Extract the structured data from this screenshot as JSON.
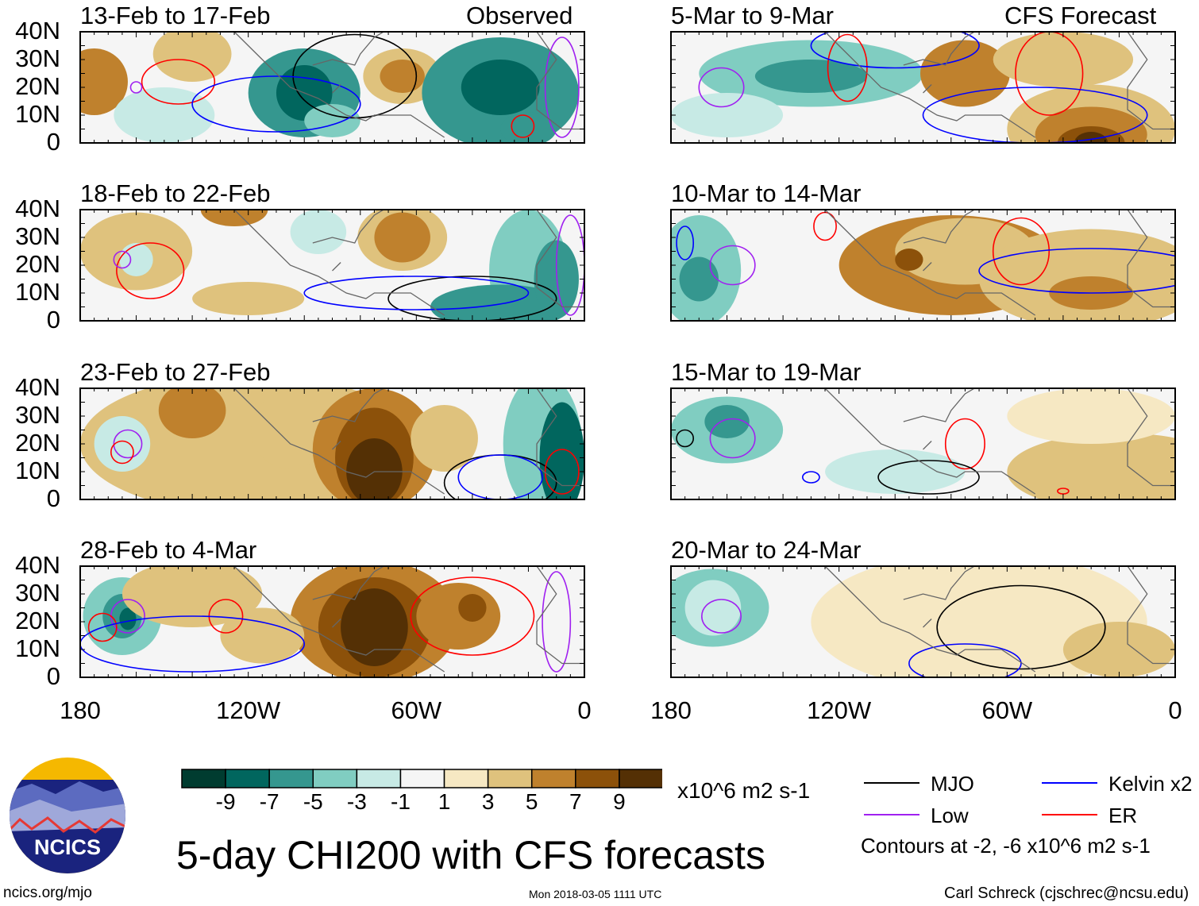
{
  "chart_data": {
    "type": "heatmap",
    "title": "5-day CHI200 with CFS forecasts",
    "units": "x10^6 m2 s-1",
    "lon_range": [
      -180,
      0
    ],
    "lat_range": [
      0,
      40
    ],
    "x_ticks": [
      {
        "v": -180,
        "label": "180"
      },
      {
        "v": -120,
        "label": "120W"
      },
      {
        "v": -60,
        "label": "60W"
      },
      {
        "v": 0,
        "label": "0"
      }
    ],
    "y_ticks": [
      {
        "v": 40,
        "label": "40N"
      },
      {
        "v": 30,
        "label": "30N"
      },
      {
        "v": 20,
        "label": "20N"
      },
      {
        "v": 10,
        "label": "10N"
      },
      {
        "v": 0,
        "label": "0"
      }
    ],
    "column_labels": {
      "observed": "Observed",
      "forecast": "CFS Forecast"
    },
    "colorbar": {
      "levels": [
        "-9",
        "-7",
        "-5",
        "-3",
        "-1",
        "1",
        "3",
        "5",
        "7",
        "9"
      ],
      "colors": [
        "#003c30",
        "#01665e",
        "#35978f",
        "#80cdc1",
        "#c7eae5",
        "#f5f5f5",
        "#f6e8c3",
        "#dfc27d",
        "#bf812d",
        "#8c510a",
        "#543005"
      ]
    },
    "legend": [
      {
        "name": "MJO",
        "color": "#000000"
      },
      {
        "name": "Kelvin x2",
        "color": "#0000ff"
      },
      {
        "name": "Low",
        "color": "#a020f0"
      },
      {
        "name": "ER",
        "color": "#ff0000"
      }
    ],
    "contour_note": "Contours at -2, -6 x10^6 m2 s-1",
    "panels": [
      {
        "title": "13-Feb to 17-Feb",
        "col": 0,
        "row": 0,
        "blobs": [
          [
            -175,
            22,
            12,
            12,
            5
          ],
          [
            -140,
            32,
            14,
            10,
            3
          ],
          [
            -150,
            10,
            18,
            10,
            -1
          ],
          [
            -100,
            18,
            20,
            16,
            -5
          ],
          [
            -100,
            18,
            10,
            10,
            -7
          ],
          [
            -65,
            24,
            14,
            10,
            3
          ],
          [
            -65,
            24,
            8,
            6,
            5
          ],
          [
            -30,
            18,
            28,
            20,
            -5
          ],
          [
            -30,
            20,
            14,
            10,
            -7
          ],
          [
            -20,
            5,
            10,
            6,
            -5
          ],
          [
            -90,
            8,
            10,
            6,
            -3
          ]
        ],
        "contours": [
          [
            -145,
            22,
            13,
            8,
            "ER"
          ],
          [
            -160,
            20,
            2,
            2,
            "Low"
          ],
          [
            -82,
            24,
            22,
            15,
            "MJO"
          ],
          [
            -22,
            6,
            4,
            4,
            "ER"
          ],
          [
            -110,
            14,
            30,
            10,
            "Kelvin"
          ],
          [
            -8,
            20,
            6,
            18,
            "Low"
          ]
        ]
      },
      {
        "title": "18-Feb to 22-Feb",
        "col": 0,
        "row": 1,
        "blobs": [
          [
            -160,
            25,
            20,
            14,
            3
          ],
          [
            -160,
            22,
            6,
            6,
            -1
          ],
          [
            -125,
            40,
            12,
            6,
            5
          ],
          [
            -95,
            32,
            10,
            8,
            -1
          ],
          [
            -65,
            30,
            16,
            12,
            3
          ],
          [
            -65,
            30,
            10,
            9,
            5
          ],
          [
            -120,
            8,
            20,
            6,
            3
          ],
          [
            -20,
            18,
            14,
            22,
            -3
          ],
          [
            -30,
            5,
            25,
            8,
            -5
          ],
          [
            -10,
            15,
            8,
            14,
            -5
          ]
        ],
        "contours": [
          [
            -155,
            18,
            12,
            10,
            "ER"
          ],
          [
            -165,
            22,
            3,
            3,
            "Low"
          ],
          [
            -40,
            8,
            30,
            8,
            "MJO"
          ],
          [
            -60,
            10,
            40,
            6,
            "Kelvin"
          ],
          [
            -5,
            20,
            5,
            18,
            "Low"
          ]
        ]
      },
      {
        "title": "23-Feb to 27-Feb",
        "col": 0,
        "row": 2,
        "blobs": [
          [
            -120,
            20,
            60,
            25,
            3
          ],
          [
            -140,
            32,
            12,
            10,
            5
          ],
          [
            -105,
            25,
            14,
            14,
            3
          ],
          [
            -75,
            18,
            22,
            22,
            5
          ],
          [
            -75,
            15,
            14,
            18,
            7
          ],
          [
            -75,
            10,
            10,
            12,
            9
          ],
          [
            -50,
            22,
            12,
            12,
            3
          ],
          [
            -15,
            20,
            14,
            25,
            -3
          ],
          [
            -8,
            15,
            8,
            20,
            -7
          ],
          [
            -165,
            20,
            10,
            10,
            -1
          ]
        ],
        "contours": [
          [
            -163,
            20,
            5,
            5,
            "Low"
          ],
          [
            -165,
            17,
            4,
            4,
            "ER"
          ],
          [
            -30,
            6,
            20,
            10,
            "MJO"
          ],
          [
            -30,
            8,
            15,
            8,
            "Kelvin"
          ],
          [
            -8,
            10,
            6,
            8,
            "ER"
          ]
        ]
      },
      {
        "title": "28-Feb to 4-Mar",
        "col": 0,
        "row": 3,
        "blobs": [
          [
            -165,
            22,
            14,
            14,
            -3
          ],
          [
            -165,
            22,
            7,
            8,
            -5
          ],
          [
            -163,
            21,
            3,
            4,
            -7
          ],
          [
            -140,
            30,
            25,
            12,
            3
          ],
          [
            -75,
            20,
            30,
            22,
            5
          ],
          [
            -75,
            18,
            20,
            18,
            7
          ],
          [
            -75,
            18,
            12,
            14,
            9
          ],
          [
            -45,
            22,
            15,
            12,
            5
          ],
          [
            -40,
            25,
            5,
            5,
            7
          ],
          [
            -115,
            15,
            15,
            10,
            3
          ]
        ],
        "contours": [
          [
            -163,
            22,
            6,
            6,
            "Low"
          ],
          [
            -172,
            18,
            5,
            5,
            "ER"
          ],
          [
            -128,
            22,
            6,
            6,
            "ER"
          ],
          [
            -40,
            22,
            22,
            14,
            "ER"
          ],
          [
            -140,
            12,
            40,
            10,
            "Kelvin"
          ],
          [
            -10,
            20,
            5,
            18,
            "Low"
          ]
        ]
      },
      {
        "title": "5-Mar to 9-Mar",
        "col": 1,
        "row": 0,
        "blobs": [
          [
            -130,
            25,
            40,
            12,
            -3
          ],
          [
            -130,
            24,
            20,
            6,
            -5
          ],
          [
            -160,
            10,
            20,
            8,
            -1
          ],
          [
            -75,
            25,
            16,
            12,
            5
          ],
          [
            -40,
            30,
            25,
            10,
            3
          ],
          [
            -30,
            5,
            30,
            16,
            3
          ],
          [
            -30,
            3,
            20,
            10,
            5
          ],
          [
            -30,
            0,
            12,
            6,
            7
          ],
          [
            -30,
            0,
            6,
            4,
            9
          ]
        ],
        "contours": [
          [
            -162,
            20,
            8,
            7,
            "Low"
          ],
          [
            -117,
            27,
            7,
            12,
            "ER"
          ],
          [
            -45,
            25,
            12,
            15,
            "ER"
          ],
          [
            -100,
            35,
            30,
            8,
            "Kelvin"
          ],
          [
            -50,
            10,
            40,
            10,
            "Kelvin"
          ]
        ]
      },
      {
        "title": "10-Mar to 14-Mar",
        "col": 1,
        "row": 1,
        "blobs": [
          [
            -170,
            18,
            15,
            20,
            -3
          ],
          [
            -170,
            15,
            7,
            8,
            -5
          ],
          [
            -80,
            20,
            40,
            18,
            5
          ],
          [
            -75,
            25,
            25,
            12,
            3
          ],
          [
            -30,
            15,
            40,
            18,
            3
          ],
          [
            -30,
            10,
            15,
            6,
            5
          ],
          [
            -95,
            22,
            5,
            4,
            7
          ]
        ],
        "contours": [
          [
            -158,
            20,
            8,
            7,
            "Low"
          ],
          [
            -175,
            28,
            3,
            6,
            "Kelvin"
          ],
          [
            -55,
            25,
            10,
            12,
            "ER"
          ],
          [
            -125,
            34,
            4,
            5,
            "ER"
          ],
          [
            -30,
            18,
            40,
            8,
            "Kelvin"
          ]
        ]
      },
      {
        "title": "15-Mar to 19-Mar",
        "col": 1,
        "row": 2,
        "blobs": [
          [
            -160,
            25,
            20,
            12,
            -3
          ],
          [
            -160,
            28,
            8,
            6,
            -5
          ],
          [
            -100,
            10,
            25,
            8,
            -1
          ],
          [
            -20,
            10,
            40,
            14,
            3
          ],
          [
            -30,
            30,
            30,
            10,
            1
          ]
        ],
        "contours": [
          [
            -158,
            22,
            8,
            7,
            "Low"
          ],
          [
            -75,
            20,
            7,
            9,
            "ER"
          ],
          [
            -88,
            8,
            18,
            6,
            "MJO"
          ],
          [
            -130,
            8,
            3,
            2,
            "Kelvin"
          ],
          [
            -175,
            22,
            3,
            3,
            "MJO"
          ],
          [
            -40,
            3,
            2,
            1,
            "ER"
          ]
        ]
      },
      {
        "title": "20-Mar to 24-Mar",
        "col": 1,
        "row": 3,
        "blobs": [
          [
            -165,
            25,
            20,
            14,
            -3
          ],
          [
            -165,
            25,
            10,
            10,
            -1
          ],
          [
            -40,
            25,
            25,
            12,
            -1
          ],
          [
            -70,
            20,
            60,
            25,
            1
          ],
          [
            -20,
            10,
            20,
            10,
            3
          ]
        ],
        "contours": [
          [
            -162,
            22,
            7,
            6,
            "Low"
          ],
          [
            -55,
            18,
            30,
            15,
            "MJO"
          ],
          [
            -75,
            5,
            20,
            7,
            "Kelvin"
          ]
        ]
      }
    ]
  },
  "footer": {
    "logo_text": "NCICS",
    "url": "ncics.org/mjo",
    "timestamp": "Mon 2018-03-05 1111 UTC",
    "author": "Carl Schreck (cjschrec@ncsu.edu)"
  }
}
